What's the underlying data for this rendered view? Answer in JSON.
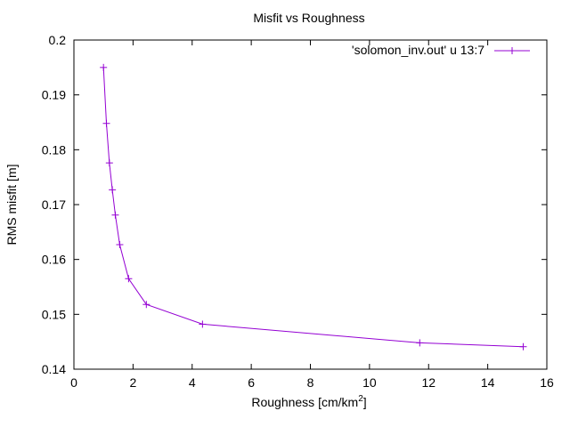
{
  "chart_data": {
    "type": "line",
    "title": "Misfit vs Roughness",
    "xlabel_main": "Roughness [cm/km",
    "xlabel_sup": "2",
    "xlabel_end": "]",
    "ylabel": "RMS misfit [m]",
    "xlim": [
      0,
      16
    ],
    "ylim": [
      0.14,
      0.2
    ],
    "xticks": [
      0,
      2,
      4,
      6,
      8,
      10,
      12,
      14,
      16
    ],
    "yticks": [
      0.14,
      0.15,
      0.16,
      0.17,
      0.18,
      0.19,
      0.2
    ],
    "grid": false,
    "legend_position": "top-right",
    "series": [
      {
        "name": "'solomon_inv.out' u 13:7",
        "color": "#9400d3",
        "marker": "plus",
        "x": [
          1.0,
          1.1,
          1.2,
          1.3,
          1.4,
          1.55,
          1.85,
          2.45,
          4.35,
          11.7,
          15.2
        ],
        "y": [
          0.195,
          0.1848,
          0.1776,
          0.1727,
          0.1681,
          0.1627,
          0.1565,
          0.1518,
          0.1482,
          0.1448,
          0.1441
        ]
      }
    ]
  }
}
